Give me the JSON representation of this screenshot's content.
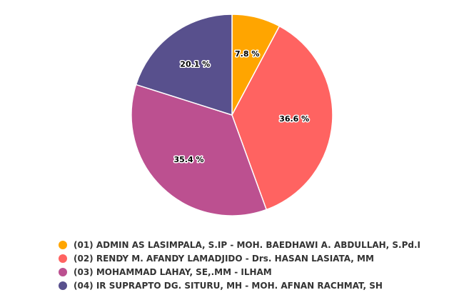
{
  "chart_data": {
    "type": "pie",
    "title": "",
    "series": [
      {
        "slices": [
          {
            "name": "(01) ADMIN AS LASIMPALA, S.IP - MOH. BAEDHAWI A. ABDULLAH, S.Pd.I",
            "value": 7.8,
            "label": "7.8 %",
            "color": "#FFA500"
          },
          {
            "name": "(02) RENDY M. AFANDY LAMADJIDO - Drs. HASAN LASIATA, MM",
            "value": 36.6,
            "label": "36.6 %",
            "color": "#FF6361"
          },
          {
            "name": "(03) MOHAMMAD LAHAY, SE,.MM - ILHAM",
            "value": 35.4,
            "label": "35.4 %",
            "color": "#BC5090"
          },
          {
            "name": "(04) IR SUPRAPTO DG. SITURU, MH - MOH. AFNAN RACHMAT, SH",
            "value": 20.1,
            "label": "20.1 %",
            "color": "#58508D"
          }
        ]
      }
    ],
    "legend_position": "bottom"
  }
}
